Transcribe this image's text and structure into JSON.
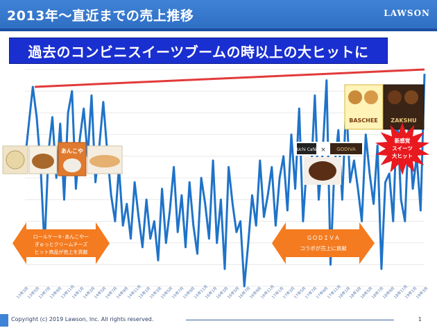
{
  "header": {
    "title": "2013年～直近までの売上推移",
    "logo": "LAWSON"
  },
  "headline": {
    "text": "過去のコンビニスイーツブームの時以上の大ヒットに"
  },
  "callouts": {
    "left_arrow": [
      "ロールケーキ･あんこやー",
      "ぎゅっとクリームチーズ",
      "ヒット商品が売上を貢献"
    ],
    "right_arrow_top": "ＧＯＤＩＶＡ",
    "right_arrow_bottom": "コラボが売上に貢献",
    "burst": [
      "新感覚",
      "スイーツ",
      "大ヒット"
    ]
  },
  "products": {
    "uchi_cafe": "Uchi Café",
    "cross": "×",
    "godiva": "GODIVA",
    "baschee": "BASCHEE",
    "zakshu": "ZAKSHU",
    "annkoya": "あんこや"
  },
  "footer": {
    "copyright": "Copyright (c) 2019 Lawson, Inc. All rights reserved.",
    "page": "1"
  },
  "colors": {
    "series": "#1f73c8",
    "trend": "#e23a3a",
    "arrow": "#f47b20",
    "burst": "#e8191f",
    "header": "#3f83d6"
  },
  "chart_data": {
    "type": "line",
    "title": "",
    "xlabel": "",
    "ylabel": "",
    "grid": true,
    "ylim": [
      0,
      100
    ],
    "x_tick_labels": [
      "13年3月",
      "13年5月",
      "13年7月",
      "13年9月",
      "13年11月",
      "14年1月",
      "14年3月",
      "14年5月",
      "14年7月",
      "14年9月",
      "14年11月",
      "15年1月",
      "15年3月",
      "15年5月",
      "15年7月",
      "15年9月",
      "15年11月",
      "16年1月",
      "16年3月",
      "16年5月",
      "16年7月",
      "16年9月",
      "16年11月",
      "17年1月",
      "17年3月",
      "17年5月",
      "17年7月",
      "17年9月",
      "17年11月",
      "18年1月",
      "18年3月",
      "18年5月",
      "18年7月",
      "18年9月",
      "18年11月",
      "19年1月",
      "19年3月"
    ],
    "series": [
      {
        "values": [
          58,
          75,
          92,
          78,
          55,
          18,
          62,
          78,
          50,
          75,
          40,
          80,
          90,
          45,
          68,
          82,
          60,
          88,
          48,
          65,
          85,
          62,
          42,
          30,
          55,
          28,
          38,
          22,
          48,
          32,
          18,
          40,
          22,
          30,
          12,
          45,
          20,
          35,
          55,
          25,
          42,
          18,
          48,
          28,
          15,
          50,
          38,
          22,
          58,
          20,
          40,
          8,
          55,
          38,
          25,
          30,
          0,
          20,
          42,
          28,
          58,
          32,
          42,
          55,
          28,
          50,
          60,
          35,
          70,
          45,
          82,
          30,
          58,
          50,
          88,
          40,
          62,
          95,
          10,
          55,
          72,
          40,
          85,
          48,
          58,
          45,
          30,
          70,
          52,
          38,
          65,
          8,
          48,
          52,
          30,
          80,
          40,
          30,
          75,
          45,
          60,
          35,
          98
        ]
      }
    ],
    "trend_line": {
      "from": 92,
      "to": 100
    }
  }
}
